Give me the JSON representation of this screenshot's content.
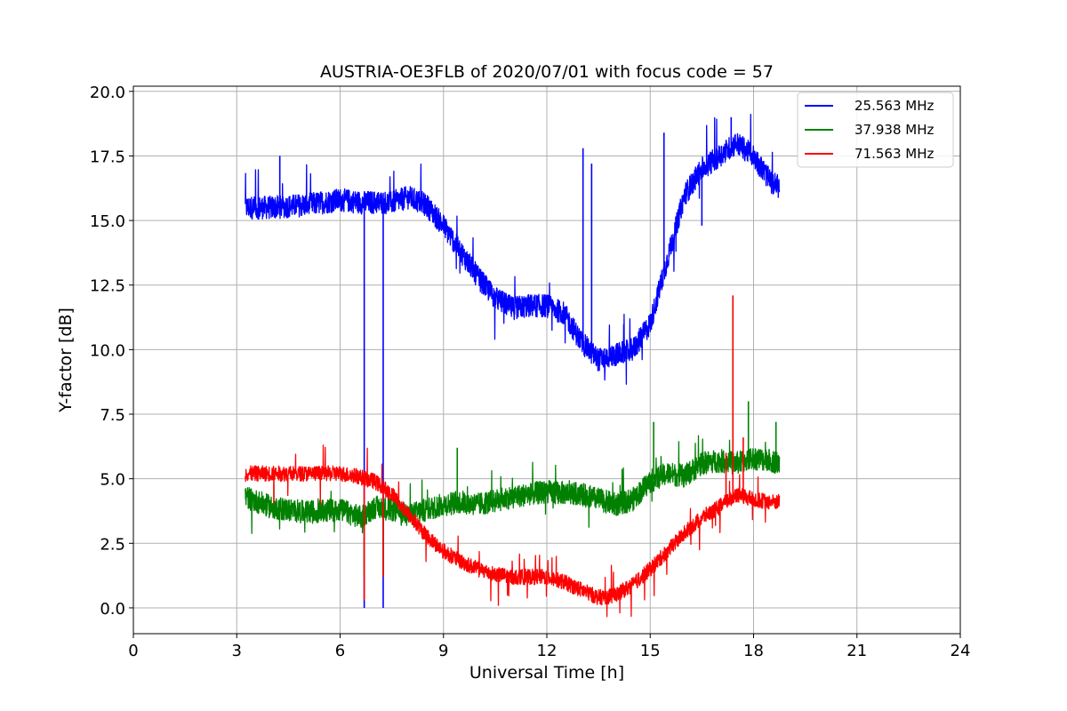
{
  "chart_data": {
    "type": "line",
    "title": "AUSTRIA-OE3FLB of 2020/07/01 with focus code = 57",
    "xlabel": "Universal Time [h]",
    "ylabel": "Y-factor [dB]",
    "xlim": [
      0,
      24
    ],
    "ylim": [
      -1,
      20.2
    ],
    "xticks": [
      "0",
      "3",
      "6",
      "9",
      "12",
      "15",
      "18",
      "21",
      "24"
    ],
    "yticks": [
      "0.0",
      "2.5",
      "5.0",
      "7.5",
      "10.0",
      "12.5",
      "15.0",
      "17.5",
      "20.0"
    ],
    "grid": true,
    "legend_position": "top-right",
    "series": [
      {
        "name": "25.563 MHz",
        "color": "#0000ff",
        "x": [
          3.25,
          4.0,
          5.0,
          6.0,
          6.6,
          7.5,
          8.0,
          8.5,
          9.0,
          9.5,
          10.0,
          10.5,
          11.0,
          11.5,
          12.0,
          12.5,
          13.0,
          13.5,
          14.0,
          14.5,
          15.0,
          15.5,
          16.0,
          16.5,
          17.0,
          17.5,
          18.0,
          18.5,
          18.75
        ],
        "y": [
          15.5,
          15.5,
          15.6,
          15.8,
          15.7,
          15.7,
          15.9,
          15.6,
          14.8,
          13.8,
          12.8,
          12.0,
          11.6,
          11.7,
          11.7,
          11.4,
          10.3,
          9.6,
          9.8,
          10.0,
          11.0,
          13.5,
          16.0,
          17.0,
          17.5,
          18.0,
          17.5,
          16.5,
          16.3
        ],
        "spikes": [
          [
            4.25,
            17.5
          ],
          [
            6.7,
            0.0
          ],
          [
            7.25,
            0.0
          ],
          [
            13.05,
            17.8
          ],
          [
            13.3,
            17.2
          ],
          [
            15.4,
            18.4
          ],
          [
            16.5,
            14.8
          ],
          [
            17.35,
            19.0
          ]
        ]
      },
      {
        "name": "37.938 MHz",
        "color": "#008000",
        "x": [
          3.25,
          4.0,
          5.0,
          6.0,
          6.6,
          7.0,
          7.5,
          8.0,
          8.5,
          9.0,
          9.5,
          10.0,
          11.0,
          12.0,
          13.0,
          14.0,
          14.5,
          15.0,
          15.5,
          16.0,
          16.5,
          17.0,
          17.5,
          18.0,
          18.5,
          18.75
        ],
        "y": [
          4.3,
          3.9,
          3.7,
          3.8,
          3.5,
          3.9,
          3.8,
          3.6,
          3.8,
          4.0,
          4.1,
          4.0,
          4.3,
          4.5,
          4.4,
          4.0,
          4.2,
          4.9,
          5.2,
          5.1,
          5.6,
          5.7,
          5.6,
          5.8,
          5.7,
          5.6
        ],
        "spikes": [
          [
            6.7,
            1.3
          ],
          [
            7.25,
            1.2
          ],
          [
            9.4,
            6.2
          ],
          [
            17.85,
            8.0
          ],
          [
            15.1,
            7.2
          ],
          [
            18.65,
            7.2
          ]
        ]
      },
      {
        "name": "71.563 MHz",
        "color": "#ff0000",
        "x": [
          3.25,
          4.0,
          5.0,
          6.0,
          6.5,
          7.0,
          7.5,
          8.0,
          8.5,
          9.0,
          9.5,
          10.0,
          10.5,
          11.0,
          11.5,
          12.0,
          12.5,
          13.0,
          13.5,
          14.0,
          14.5,
          15.0,
          15.5,
          16.0,
          16.5,
          17.0,
          17.5,
          18.0,
          18.5,
          18.75
        ],
        "y": [
          5.2,
          5.2,
          5.2,
          5.2,
          5.1,
          4.9,
          4.4,
          3.6,
          2.8,
          2.2,
          1.8,
          1.5,
          1.3,
          1.2,
          1.2,
          1.2,
          1.0,
          0.7,
          0.4,
          0.5,
          0.9,
          1.5,
          2.2,
          2.9,
          3.5,
          3.9,
          4.4,
          4.2,
          4.1,
          4.1
        ],
        "spikes": [
          [
            6.7,
            0.3
          ],
          [
            7.25,
            1.2
          ],
          [
            17.4,
            12.1
          ],
          [
            17.7,
            6.6
          ],
          [
            17.2,
            6.0
          ]
        ]
      }
    ]
  }
}
